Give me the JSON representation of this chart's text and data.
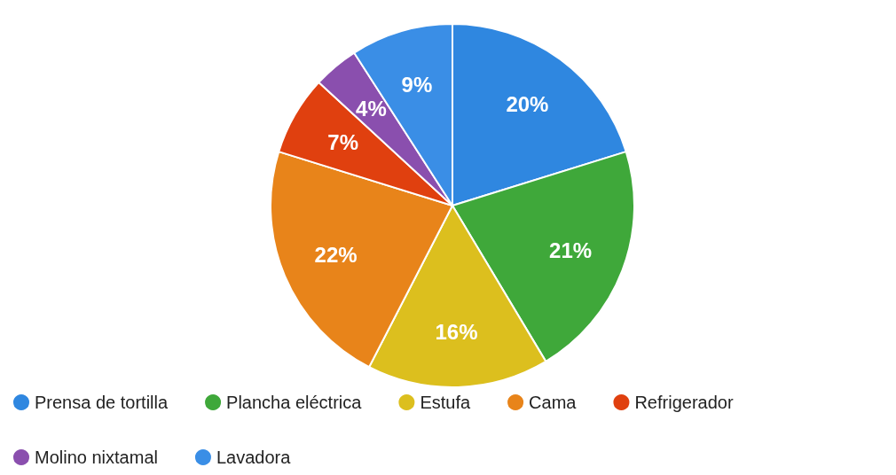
{
  "chart_data": {
    "type": "pie",
    "categories": [
      "Prensa de tortilla",
      "Plancha eléctrica",
      "Estufa",
      "Cama",
      "Refrigerador",
      "Molino nixtamal",
      "Lavadora"
    ],
    "values": [
      20,
      21,
      16,
      22,
      7,
      4,
      9
    ],
    "value_labels": [
      "20%",
      "21%",
      "16%",
      "22%",
      "7%",
      "4%",
      "9%"
    ],
    "colors": [
      "#2f87e0",
      "#3fa83a",
      "#dcbf1e",
      "#e8841a",
      "#e0400f",
      "#8a4fae",
      "#3a8ee6"
    ],
    "legend": "bottom"
  }
}
